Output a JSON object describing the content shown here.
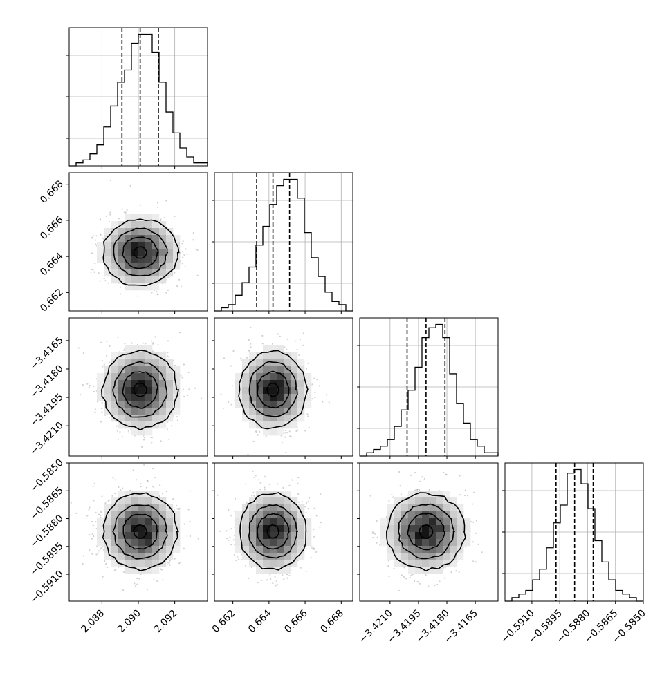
{
  "chart_data": {
    "type": "corner",
    "parameters": [
      {
        "range": [
          2.0862,
          2.0938
        ],
        "ticks": [
          "2.088",
          "2.090",
          "2.092"
        ],
        "tick_values": [
          2.088,
          2.09,
          2.092
        ],
        "quantiles": [
          2.0891,
          2.0901,
          2.0911
        ],
        "hist": [
          0,
          1,
          2,
          4,
          7,
          13,
          20,
          28,
          32,
          41,
          44,
          44,
          38,
          28,
          18,
          11,
          6,
          3,
          1,
          1
        ]
      },
      {
        "range": [
          0.66098,
          0.66864
        ],
        "ticks": [
          "0.662",
          "0.664",
          "0.666",
          "0.668"
        ],
        "tick_values": [
          0.662,
          0.664,
          0.666,
          0.668
        ],
        "quantiles": [
          0.66332,
          0.66422,
          0.66514
        ],
        "hist": [
          0,
          1,
          2,
          5,
          9,
          14,
          21,
          27,
          34,
          40,
          42,
          42,
          36,
          25,
          17,
          11,
          6,
          3,
          2,
          0
        ]
      },
      {
        "range": [
          -3.4226,
          -3.4153
        ],
        "ticks": [
          "−3.4210",
          "−3.4195",
          "−3.4180",
          "−3.4165"
        ],
        "tick_values": [
          -3.421,
          -3.4195,
          -3.418,
          -3.4165
        ],
        "quantiles": [
          -3.4201,
          -3.4191,
          -3.4181
        ],
        "hist": [
          0,
          1,
          2,
          3,
          5,
          9,
          14,
          20,
          27,
          36,
          39,
          40,
          36,
          25,
          16,
          10,
          5,
          3,
          1,
          1
        ]
      },
      {
        "range": [
          -0.59245,
          -0.585
        ],
        "ticks": [
          "−0.5910",
          "−0.5895",
          "−0.5880",
          "−0.5865",
          "−0.5850"
        ],
        "tick_values": [
          -0.591,
          -0.5895,
          -0.588,
          -0.5865,
          -0.585
        ],
        "quantiles": [
          -0.5897,
          -0.5887,
          -0.5877
        ],
        "hist": [
          0,
          1,
          2,
          3,
          6,
          9,
          15,
          22,
          27,
          36,
          37,
          33,
          26,
          17,
          11,
          6,
          3,
          2,
          1,
          0
        ]
      }
    ],
    "y_axis_ticks": {
      "1": {
        "ticks": [
          "0.668",
          "0.666",
          "0.664",
          "0.662"
        ],
        "tick_values": [
          0.668,
          0.666,
          0.664,
          0.662
        ]
      },
      "2": {
        "ticks": [
          "−3.4165",
          "−3.4180",
          "−3.4195",
          "−3.4210"
        ],
        "tick_values": [
          -3.4165,
          -3.418,
          -3.4195,
          -3.421
        ]
      },
      "3": {
        "ticks": [
          "−0.5850",
          "−0.5865",
          "−0.5880",
          "−0.5895",
          "−0.5910"
        ],
        "tick_values": [
          -0.585,
          -0.5865,
          -0.588,
          -0.5895,
          -0.591
        ]
      }
    },
    "grid": true,
    "density_colormap": "grays",
    "scatter_color": "#999999",
    "contour_color": "#000000"
  }
}
